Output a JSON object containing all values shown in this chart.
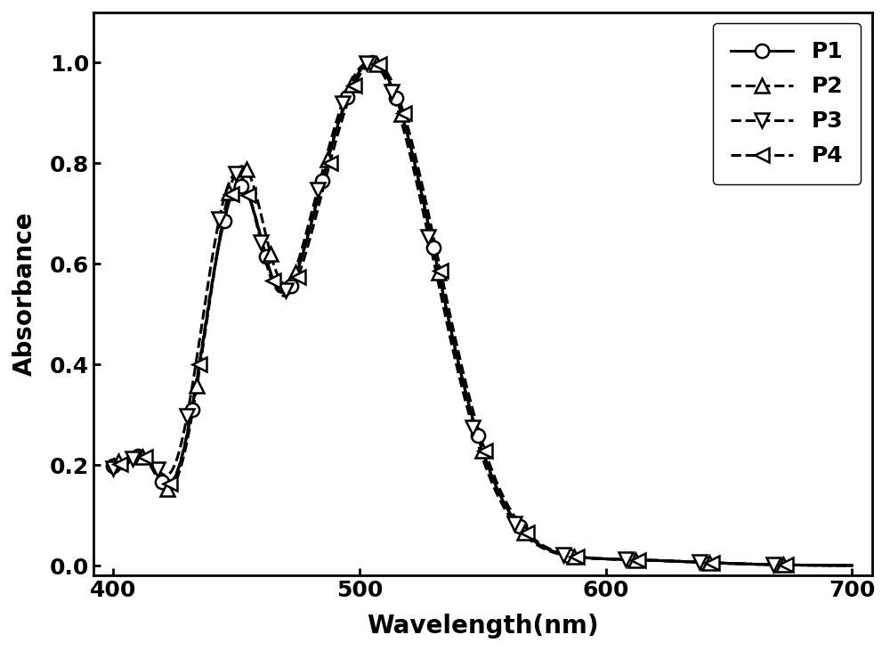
{
  "title": "",
  "xlabel": "Wavelength(nm)",
  "ylabel": "Absorbance",
  "xlim": [
    392,
    708
  ],
  "ylim": [
    -0.02,
    1.1
  ],
  "xticks": [
    400,
    500,
    600,
    700
  ],
  "yticks": [
    0.0,
    0.2,
    0.4,
    0.6,
    0.8,
    1.0
  ],
  "background_color": "#ffffff",
  "line_color": "#000000",
  "legend_labels": [
    "P1",
    "P2",
    "P3",
    "P4"
  ],
  "markers": [
    "o",
    "^",
    "v",
    "<"
  ],
  "xlabel_fontsize": 20,
  "ylabel_fontsize": 20,
  "tick_fontsize": 18,
  "legend_fontsize": 18,
  "linewidth": 2.2,
  "markersize": 11,
  "markeredgewidth": 1.8
}
